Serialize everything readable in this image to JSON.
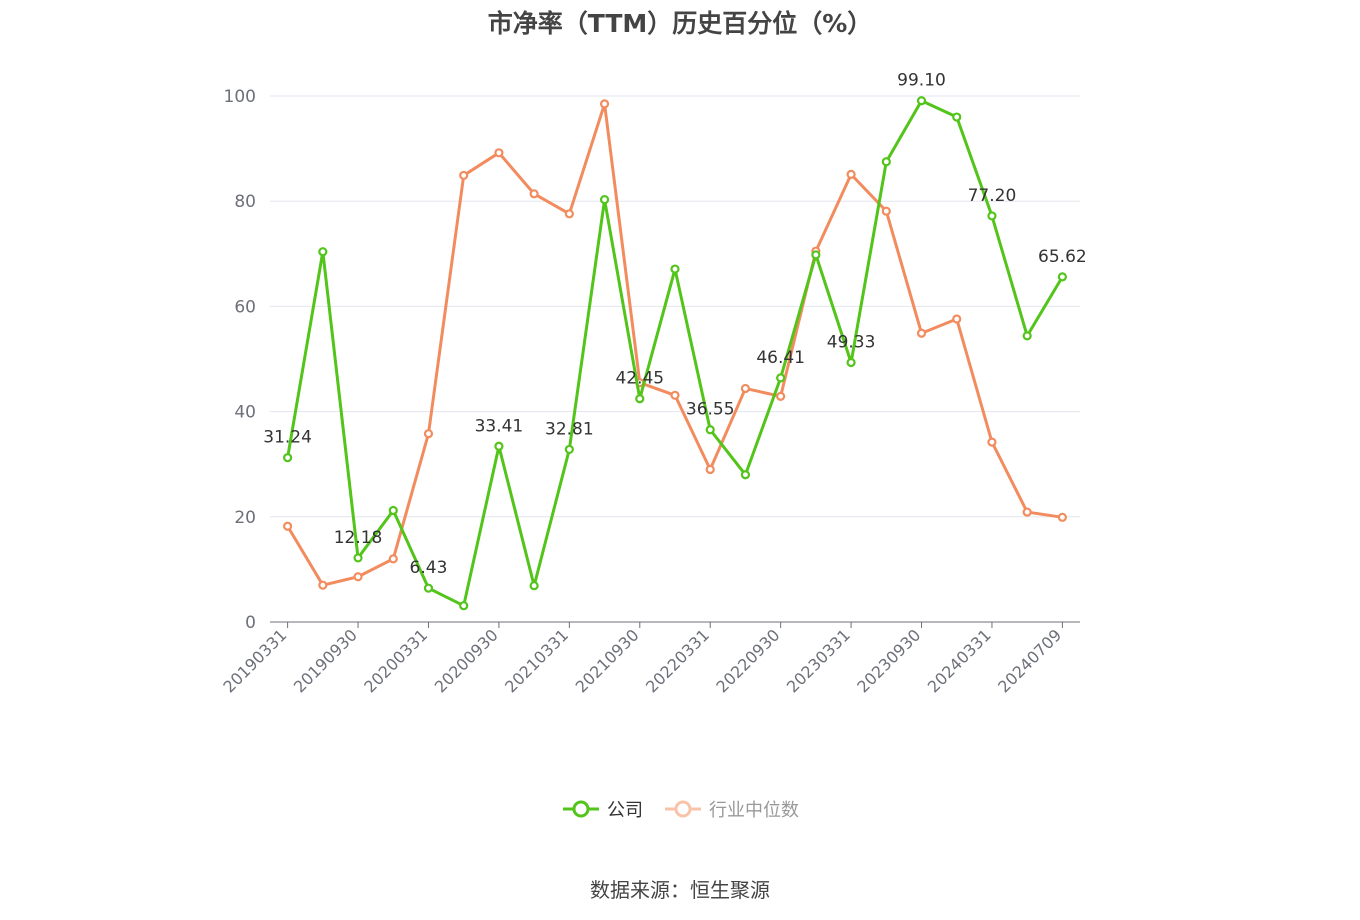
{
  "chart_data": {
    "type": "line",
    "title": "市净率（TTM）历史百分位（%）",
    "xlabel": "",
    "ylabel": "",
    "ylim": [
      0,
      100
    ],
    "yticks": [
      0,
      20,
      40,
      60,
      80,
      100
    ],
    "grid": true,
    "legend_position": "bottom-center",
    "x": [
      "20190331",
      "20190630",
      "20190930",
      "20191231",
      "20200331",
      "20200630",
      "20200930",
      "20201231",
      "20210331",
      "20210630",
      "20210930",
      "20211231",
      "20220331",
      "20220630",
      "20220930",
      "20221231",
      "20230331",
      "20230630",
      "20230930",
      "20231231",
      "20240331",
      "20240630",
      "20240709"
    ],
    "xtick_labels": [
      "20190331",
      "20190930",
      "20200331",
      "20200930",
      "20210331",
      "20210930",
      "20220331",
      "20220930",
      "20230331",
      "20230930",
      "20240331",
      "20240709"
    ],
    "series": [
      {
        "name": "公司",
        "color": "#52c41a",
        "values": [
          31.24,
          70.4,
          12.18,
          21.2,
          6.43,
          3.1,
          33.41,
          6.9,
          32.81,
          80.3,
          42.45,
          67.1,
          36.55,
          28.0,
          46.41,
          69.8,
          49.33,
          87.5,
          99.1,
          96.0,
          77.2,
          54.4,
          65.62
        ],
        "labels": [
          "31.24",
          "",
          "12.18",
          "",
          "6.43",
          "",
          "33.41",
          "",
          "32.81",
          "",
          "42.45",
          "",
          "36.55",
          "",
          "46.41",
          "",
          "49.33",
          "",
          "99.10",
          "",
          "77.20",
          "",
          "65.62"
        ]
      },
      {
        "name": "行业中位数",
        "color": "#f28c5e",
        "values": [
          18.2,
          7.0,
          8.6,
          12.0,
          35.8,
          84.9,
          89.2,
          81.4,
          77.6,
          98.5,
          45.5,
          43.1,
          29.0,
          44.4,
          42.9,
          70.5,
          85.1,
          78.1,
          54.9,
          57.6,
          34.2,
          20.9,
          19.9
        ]
      }
    ]
  },
  "source": "数据来源：恒生聚源"
}
